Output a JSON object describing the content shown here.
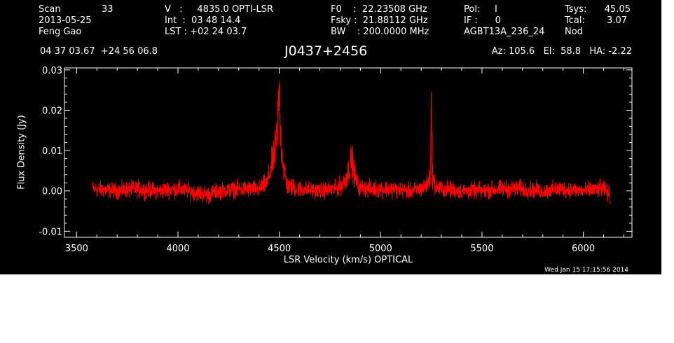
{
  "header": {
    "col1": [
      "Scan",
      "2013-05-25",
      "Feng Gao"
    ],
    "scan_number": "33",
    "col2": [
      "V   :     4835.0 OPTI-LSR",
      "Int  :  03 48 14.4",
      "LST : +02 24 03.7"
    ],
    "col3": [
      "F0    :  22.23508 GHz",
      "Fsky :  21.88112 GHz",
      "BW    : 200.0000 MHz"
    ],
    "col4": [
      "Pol:     I",
      "IF :      0",
      "AGBT13A_236_24"
    ],
    "col5_labels": [
      "Tsys:",
      "Tcal:",
      "Nod"
    ],
    "col5_values": [
      "45.05",
      "3.07",
      ""
    ],
    "coords": "04 37 03.67  +24 56 06.8",
    "source": "J0437+2456",
    "pointing": "Az: 105.6   El:  58.8   HA: -2.22",
    "timestamp": "Wed Jan 15 17:15:56 2014"
  },
  "colors": {
    "background": "#000000",
    "axes": "#ffffff",
    "spectrum": "#ff0000"
  },
  "chart_data": {
    "type": "line",
    "title": "J0437+2456",
    "xlabel": "LSR Velocity (km/s) OPTICAL",
    "ylabel": "Flux Density (Jy)",
    "xlim": [
      3440,
      6240
    ],
    "ylim": [
      -0.0115,
      0.0305
    ],
    "xticks": [
      3500,
      4000,
      4500,
      5000,
      5500,
      6000
    ],
    "xtick_labels": [
      "3500",
      "4000",
      "4500",
      "5000",
      "5500",
      "6000"
    ],
    "yticks": [
      -0.01,
      0.0,
      0.01,
      0.02,
      0.03
    ],
    "ytick_labels": [
      "-0.01",
      "0.00",
      "0.01",
      "0.02",
      "0.03"
    ],
    "series": [
      {
        "color": "#ff0000",
        "x": [
          3580,
          3700,
          3800,
          3900,
          4000,
          4100,
          4150,
          4200,
          4300,
          4400,
          4440,
          4460,
          4480,
          4490,
          4495,
          4500,
          4505,
          4510,
          4520,
          4540,
          4600,
          4700,
          4780,
          4820,
          4840,
          4855,
          4862,
          4870,
          4890,
          4950,
          5050,
          5150,
          5200,
          5230,
          5245,
          5250,
          5255,
          5270,
          5300,
          5400,
          5500,
          5600,
          5700,
          5800,
          5900,
          6000,
          6100,
          6130
        ],
        "y": [
          0.0005,
          0.0,
          0.0005,
          0.0,
          0.0005,
          -0.0005,
          -0.001,
          0.0,
          0.0005,
          0.0005,
          0.002,
          0.006,
          0.01,
          0.015,
          0.021,
          0.025,
          0.017,
          0.011,
          0.006,
          0.001,
          0.0005,
          0.0,
          0.0005,
          0.002,
          0.005,
          0.0075,
          0.007,
          0.004,
          0.001,
          0.0005,
          0.0005,
          0.0,
          0.0005,
          0.0015,
          0.004,
          0.021,
          0.004,
          0.001,
          0.0005,
          0.0,
          0.0,
          0.0005,
          0.0005,
          0.0,
          0.0005,
          0.0,
          0.0005,
          -0.001
        ]
      }
    ]
  }
}
